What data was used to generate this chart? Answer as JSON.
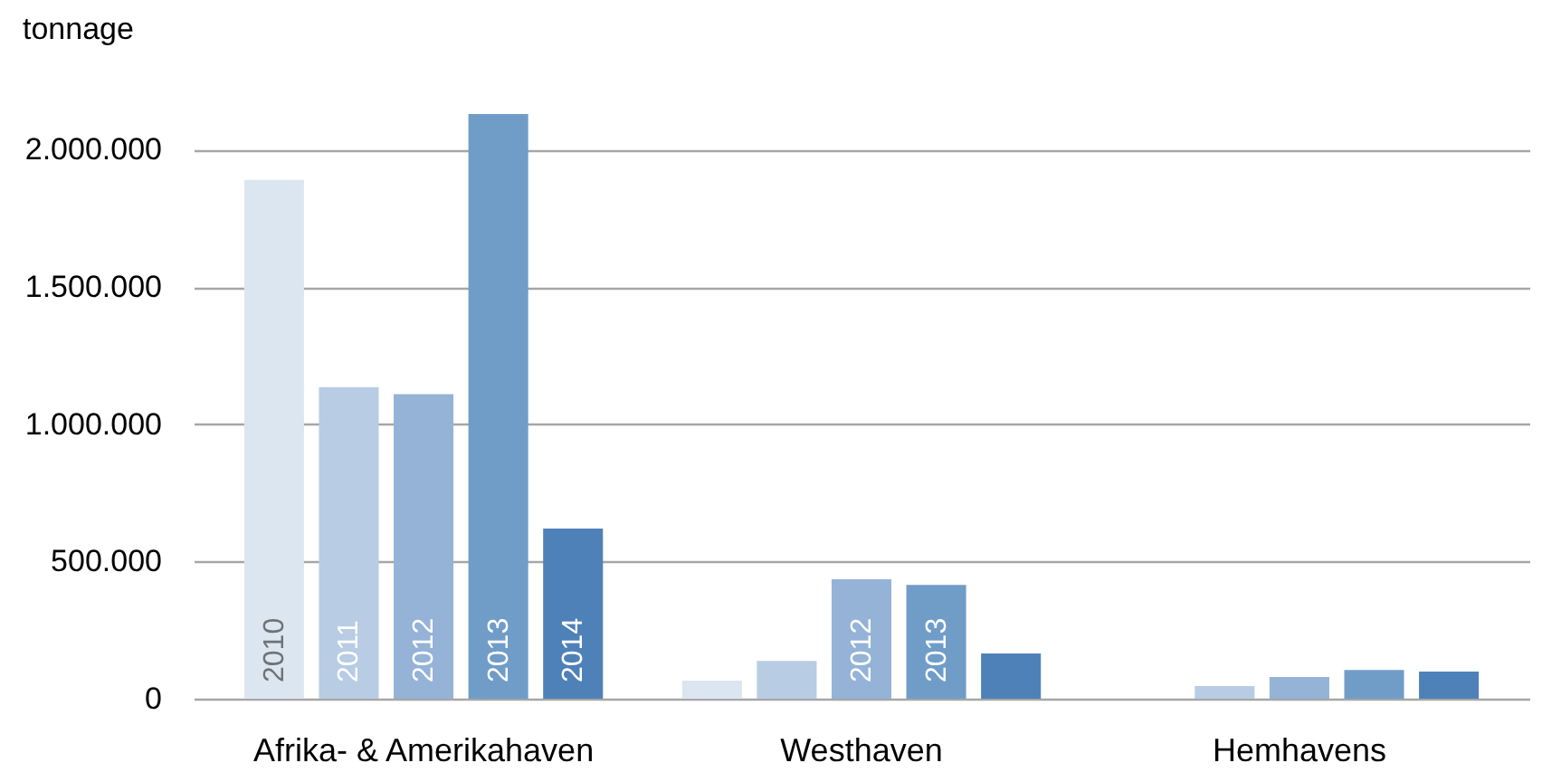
{
  "chart_data": {
    "type": "bar",
    "ylabel": "tonnage",
    "categories": [
      "Afrika- & Amerikahaven",
      "Westhaven",
      "Hemhavens"
    ],
    "series": [
      {
        "name": "2010",
        "color": "#dce6f1",
        "values": [
          1890000,
          66000,
          null
        ]
      },
      {
        "name": "2011",
        "color": "#b8cce4",
        "values": [
          1135000,
          138000,
          46000
        ]
      },
      {
        "name": "2012",
        "color": "#95b3d7",
        "values": [
          1110000,
          435000,
          79000
        ]
      },
      {
        "name": "2013",
        "color": "#709dc8",
        "values": [
          2130000,
          415000,
          105000
        ]
      },
      {
        "name": "2014",
        "color": "#4f81b9",
        "values": [
          620000,
          165000,
          99000
        ]
      }
    ],
    "ylim": [
      0,
      2150000
    ],
    "yticks": [
      0,
      {
        "value": 500000,
        "label": "500.000"
      },
      {
        "value": 1000000,
        "label": "1.000.000"
      },
      {
        "value": 1500000,
        "label": "1.500.000"
      },
      {
        "value": 2000000,
        "label": "2.000.000"
      }
    ],
    "grid": "y"
  }
}
